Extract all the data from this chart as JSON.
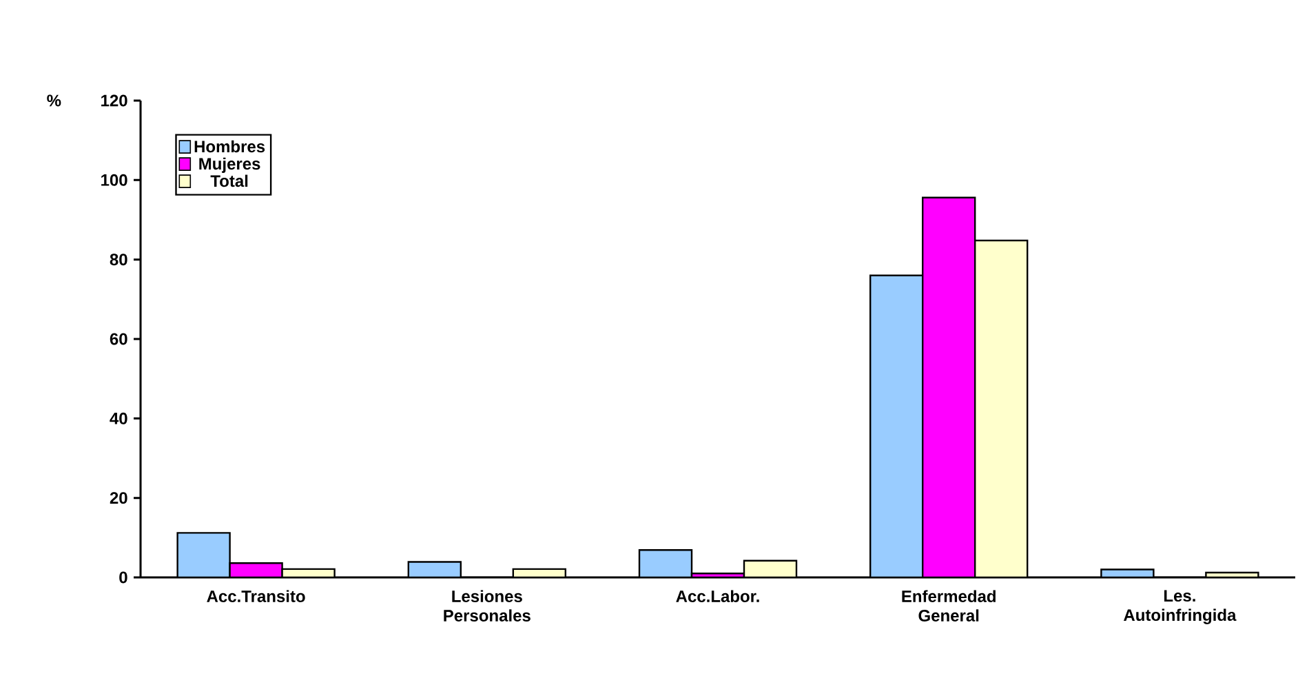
{
  "chart_data": {
    "type": "bar",
    "ylabel": "%",
    "categories": [
      "Acc.Transito",
      "Lesiones Personales",
      "Acc.Labor.",
      "Enfermedad General",
      "Les. Autoinfringida"
    ],
    "series": [
      {
        "name": "Hombres",
        "color": "#99ccff",
        "values": [
          11.2,
          3.9,
          6.9,
          76,
          2
        ]
      },
      {
        "name": "Mujeres",
        "color": "#ff00ff",
        "values": [
          3.6,
          0,
          1,
          95.6,
          0
        ]
      },
      {
        "name": "Total",
        "color": "#ffffcc",
        "values": [
          2.1,
          2.1,
          4.2,
          84.8,
          1.2
        ]
      }
    ],
    "ylim": [
      0,
      120
    ],
    "yticks": [
      0,
      20,
      40,
      60,
      80,
      100,
      120
    ],
    "grid": false,
    "legend": "top left"
  }
}
